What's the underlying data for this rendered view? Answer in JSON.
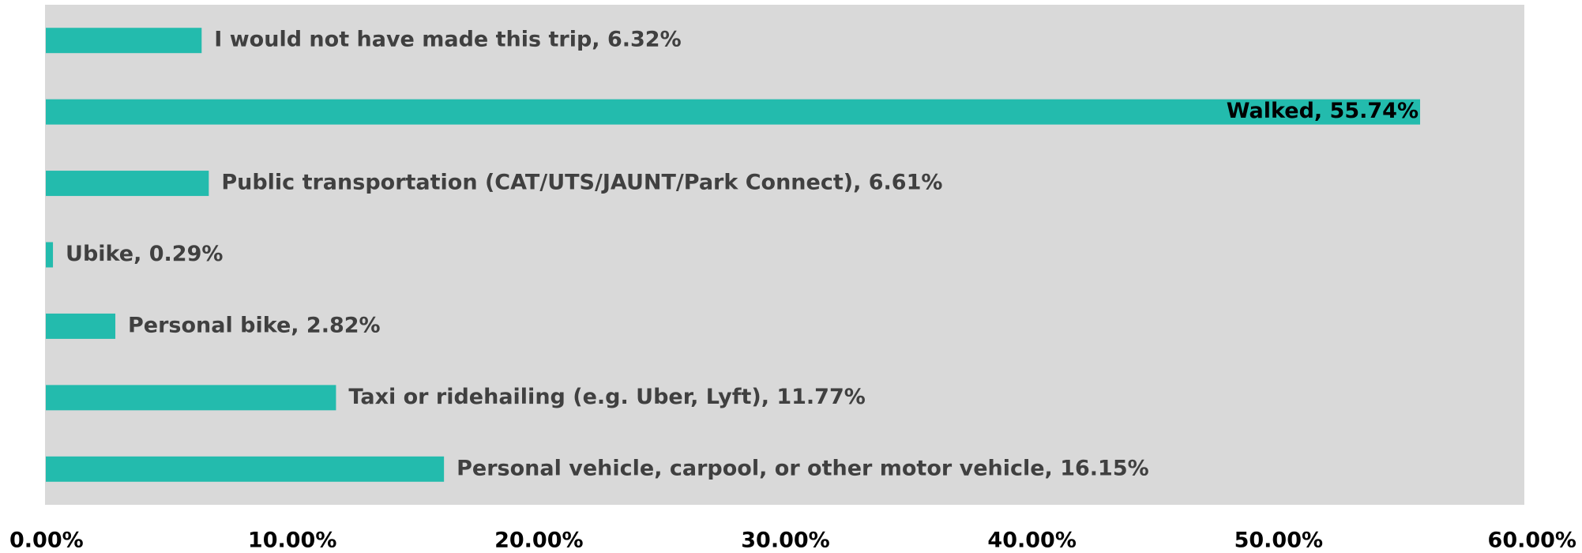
{
  "chart_data": {
    "type": "bar",
    "orientation": "horizontal",
    "values": [
      6.32,
      55.74,
      6.61,
      0.29,
      2.82,
      11.77,
      16.15
    ],
    "value_labels": [
      "I would not have made this trip, 6.32%",
      "Walked, 55.74%",
      "Public transportation (CAT/UTS/JAUNT/Park Connect), 6.61%",
      "Ubike, 0.29%",
      "Personal bike, 2.82%",
      "Taxi or ridehailing (e.g. Uber, Lyft), 11.77%",
      "Personal vehicle, carpool, or other motor vehicle, 16.15%"
    ],
    "color": "#23bbad",
    "xlim": [
      0,
      60
    ],
    "xticks": [
      {
        "value": 0,
        "label": "0.00%"
      },
      {
        "value": 10,
        "label": "10.00%"
      },
      {
        "value": 20,
        "label": "20.00%"
      },
      {
        "value": 30,
        "label": "30.00%"
      },
      {
        "value": 40,
        "label": "40.00%"
      },
      {
        "value": 50,
        "label": "50.00%"
      },
      {
        "value": 60,
        "label": "60.00%"
      }
    ],
    "grid": false
  }
}
